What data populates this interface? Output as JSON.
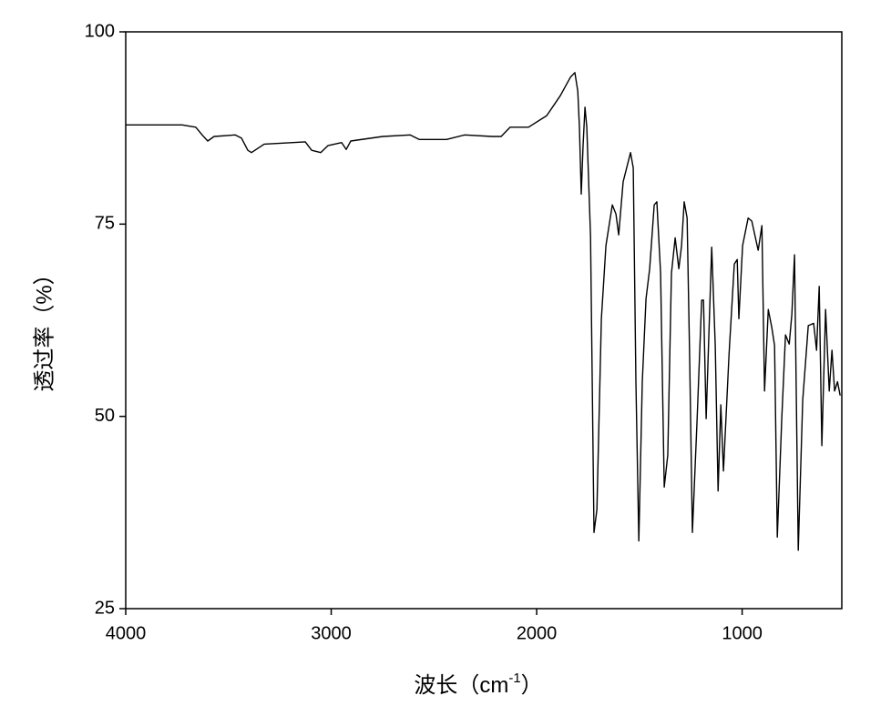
{
  "chart_data": {
    "type": "line",
    "xlabel": [
      "波长（cm",
      "-1",
      "）"
    ],
    "ylabel": "透过率（%）",
    "xlim": [
      4000,
      515
    ],
    "ylim": [
      25,
      100
    ],
    "xticks": [
      4000,
      3000,
      2000,
      1000
    ],
    "yticks": [
      25,
      50,
      75,
      100
    ],
    "x_reversed": true,
    "series": [
      {
        "color": "#000000",
        "x": [
          4000,
          3725,
          3659,
          3628,
          3601,
          3570,
          3468,
          3437,
          3406,
          3388,
          3326,
          3126,
          3095,
          3051,
          3016,
          2949,
          2927,
          2905,
          2749,
          2616,
          2572,
          2439,
          2350,
          2217,
          2173,
          2129,
          2040,
          1951,
          1885,
          1836,
          1814,
          1800,
          1792,
          1783,
          1774,
          1765,
          1756,
          1738,
          1721,
          1707,
          1685,
          1663,
          1632,
          1614,
          1601,
          1579,
          1543,
          1530,
          1517,
          1503,
          1486,
          1468,
          1450,
          1428,
          1415,
          1397,
          1379,
          1362,
          1344,
          1326,
          1308,
          1295,
          1282,
          1268,
          1255,
          1242,
          1219,
          1197,
          1188,
          1175,
          1148,
          1131,
          1117,
          1104,
          1091,
          1064,
          1038,
          1024,
          1016,
          998,
          971,
          953,
          922,
          904,
          891,
          873,
          856,
          842,
          829,
          807,
          789,
          771,
          758,
          745,
          727,
          705,
          678,
          652,
          638,
          625,
          612,
          594,
          576,
          563,
          550,
          536,
          523
        ],
        "values": [
          87.9,
          87.9,
          87.6,
          86.6,
          85.8,
          86.4,
          86.6,
          86.2,
          84.6,
          84.3,
          85.4,
          85.7,
          84.6,
          84.3,
          85.2,
          85.6,
          84.7,
          85.8,
          86.4,
          86.6,
          86.0,
          86.0,
          86.6,
          86.4,
          86.4,
          87.6,
          87.6,
          89.1,
          91.7,
          94.1,
          94.7,
          92.3,
          87.6,
          78.9,
          85.2,
          90.2,
          87.6,
          73.4,
          34.9,
          37.9,
          62.7,
          72.2,
          77.5,
          76.3,
          73.6,
          80.5,
          84.3,
          82.3,
          54.5,
          33.8,
          54.5,
          65.3,
          69.2,
          77.5,
          77.9,
          68.6,
          40.8,
          45.0,
          68.6,
          73.2,
          69.2,
          72.2,
          77.9,
          75.8,
          56.9,
          34.9,
          49.7,
          65.1,
          65.1,
          49.7,
          72.0,
          59.2,
          40.3,
          51.5,
          42.9,
          58.0,
          69.8,
          70.4,
          62.7,
          72.2,
          75.8,
          75.4,
          71.6,
          74.8,
          53.3,
          63.9,
          61.6,
          59.2,
          34.3,
          49.7,
          60.6,
          59.4,
          63.3,
          71.0,
          32.6,
          52.1,
          61.8,
          62.1,
          58.6,
          66.9,
          46.2,
          63.9,
          53.3,
          58.6,
          53.3,
          54.5,
          52.7
        ]
      }
    ]
  }
}
